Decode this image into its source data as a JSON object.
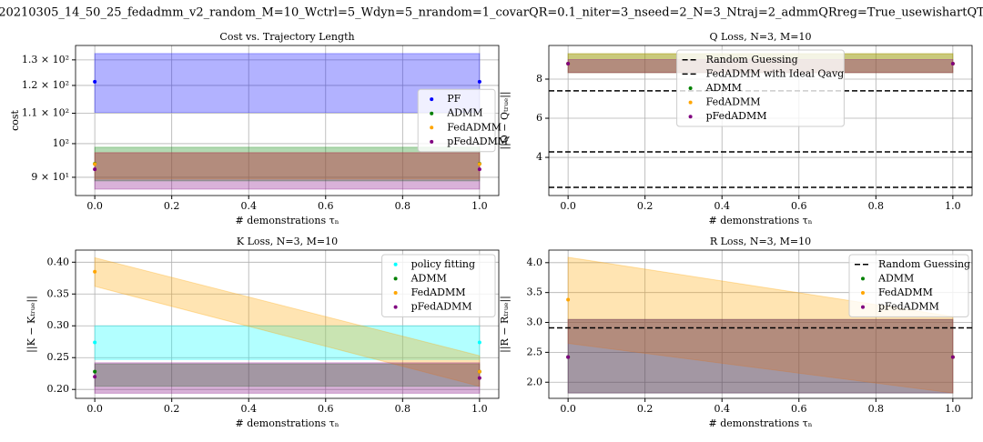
{
  "suptitle": "20210305_14_50_25_fedadmm_v2_random_M=10_Wctrl=5_Wdyn=5_nrandom=1_covarQR=0.1_niter=3_nseed=2_N=3_Ntraj=2_admmQRreg=True_usewishartQT",
  "chart_data": [
    {
      "type": "scatter",
      "title": "Cost vs. Trajectory Length",
      "x_label": "# demonstrations τₙ",
      "y_label": "cost",
      "x": [
        0,
        1
      ],
      "xlim": [
        -0.05,
        1.05
      ],
      "xticks": [
        {
          "value": 0,
          "label": "0.0"
        },
        {
          "value": 0.2,
          "label": "0.2"
        },
        {
          "value": 0.4,
          "label": "0.4"
        },
        {
          "value": 0.6,
          "label": "0.6"
        },
        {
          "value": 0.8,
          "label": "0.8"
        },
        {
          "value": 1,
          "label": "1.0"
        }
      ],
      "ylim": [
        85,
        136
      ],
      "log_y": true,
      "yticks": [
        {
          "value": 90,
          "label": "9 × 10¹"
        },
        {
          "value": 100,
          "label": "10²"
        },
        {
          "value": 110,
          "label": "1.1 × 10²"
        },
        {
          "value": 120,
          "label": "1.2 × 10²"
        },
        {
          "value": 130,
          "label": "1.3 × 10²"
        }
      ],
      "grid": true,
      "legend": "center right",
      "series": [
        {
          "name": "PF",
          "color": "#0000ff",
          "values": [
            121.4,
            121.4
          ],
          "band_low": [
            110.3,
            110.3
          ],
          "band_high": [
            132.6,
            132.6
          ]
        },
        {
          "name": "ADMM",
          "color": "#008000",
          "values": [
            93.9,
            93.9
          ],
          "band_low": [
            89,
            89
          ],
          "band_high": [
            98.9,
            98.9
          ]
        },
        {
          "name": "FedADMM",
          "color": "#ffa500",
          "values": [
            93.8,
            93.8
          ],
          "band_low": [
            89.5,
            89.5
          ],
          "band_high": [
            97.2,
            97.2
          ]
        },
        {
          "name": "pFedADMM",
          "color": "#800080",
          "values": [
            92.3,
            92.3
          ],
          "band_low": [
            86.7,
            86.7
          ],
          "band_high": [
            97.2,
            97.2
          ]
        }
      ]
    },
    {
      "type": "scatter",
      "title": "Q Loss, N=3, M=10",
      "x_label": "# demonstrations τₙ",
      "y_label": "||Q − Qₜᵣᵤₑ||",
      "x": [
        0,
        1
      ],
      "xlim": [
        -0.05,
        1.05
      ],
      "xticks": [
        {
          "value": 0,
          "label": "0.0"
        },
        {
          "value": 0.2,
          "label": "0.2"
        },
        {
          "value": 0.4,
          "label": "0.4"
        },
        {
          "value": 0.6,
          "label": "0.6"
        },
        {
          "value": 0.8,
          "label": "0.8"
        },
        {
          "value": 1,
          "label": "1.0"
        }
      ],
      "ylim": [
        2.05,
        9.72
      ],
      "yticks": [
        4,
        6,
        8
      ],
      "grid": true,
      "legend": "upper center",
      "hlines": [
        {
          "name": "Random Guessing",
          "color": "#000000",
          "values": [
            7.4
          ]
        },
        {
          "name": "FedADMM with Ideal Qavg",
          "color": "#000000",
          "values": [
            4.28,
            2.47
          ]
        }
      ],
      "series": [
        {
          "name": "ADMM",
          "color": "#008000",
          "values": [
            8.79,
            8.79
          ],
          "band_low": [
            8.33,
            8.33
          ],
          "band_high": [
            9.3,
            9.3
          ]
        },
        {
          "name": "FedADMM",
          "color": "#ffa500",
          "values": [
            8.79,
            8.79
          ],
          "band_low": [
            8.33,
            8.33
          ],
          "band_high": [
            9.3,
            9.3
          ]
        },
        {
          "name": "pFedADMM",
          "color": "#800080",
          "values": [
            8.79,
            8.79
          ],
          "band_low": [
            8.33,
            8.33
          ],
          "band_high": [
            9.0,
            9.0
          ]
        }
      ]
    },
    {
      "type": "scatter",
      "title": "K Loss, N=3, M=10",
      "x_label": "# demonstrations τₙ",
      "y_label": "||K − Kₜᵣᵤₑ||",
      "x": [
        0,
        1
      ],
      "xlim": [
        -0.05,
        1.05
      ],
      "xticks": [
        {
          "value": 0,
          "label": "0.0"
        },
        {
          "value": 0.2,
          "label": "0.2"
        },
        {
          "value": 0.4,
          "label": "0.4"
        },
        {
          "value": 0.6,
          "label": "0.6"
        },
        {
          "value": 0.8,
          "label": "0.8"
        },
        {
          "value": 1,
          "label": "1.0"
        }
      ],
      "ylim": [
        0.186,
        0.419
      ],
      "yticks": [
        {
          "value": 0.2,
          "label": "0.20"
        },
        {
          "value": 0.25,
          "label": "0.25"
        },
        {
          "value": 0.3,
          "label": "0.30"
        },
        {
          "value": 0.35,
          "label": "0.35"
        },
        {
          "value": 0.4,
          "label": "0.40"
        }
      ],
      "grid": true,
      "legend": "upper right",
      "series": [
        {
          "name": "policy fitting",
          "color": "#00ffff",
          "values": [
            0.274,
            0.274
          ],
          "band_low": [
            0.247,
            0.247
          ],
          "band_high": [
            0.3,
            0.3
          ]
        },
        {
          "name": "ADMM",
          "color": "#008000",
          "values": [
            0.228,
            0.228
          ],
          "band_low": [
            0.205,
            0.205
          ],
          "band_high": [
            0.24,
            0.24
          ]
        },
        {
          "name": "FedADMM",
          "color": "#ffa500",
          "values": [
            0.385,
            0.228
          ],
          "band_low": [
            0.362,
            0.205
          ],
          "band_high": [
            0.407,
            0.253
          ]
        },
        {
          "name": "pFedADMM",
          "color": "#800080",
          "values": [
            0.22,
            0.218
          ],
          "band_low": [
            0.194,
            0.194
          ],
          "band_high": [
            0.242,
            0.242
          ]
        }
      ]
    },
    {
      "type": "scatter",
      "title": "R Loss, N=3, M=10",
      "x_label": "# demonstrations τₙ",
      "y_label": "||R − Rₜᵣᵤₑ||",
      "x": [
        0,
        1
      ],
      "xlim": [
        -0.05,
        1.05
      ],
      "xticks": [
        {
          "value": 0,
          "label": "0.0"
        },
        {
          "value": 0.2,
          "label": "0.2"
        },
        {
          "value": 0.4,
          "label": "0.4"
        },
        {
          "value": 0.6,
          "label": "0.6"
        },
        {
          "value": 0.8,
          "label": "0.8"
        },
        {
          "value": 1,
          "label": "1.0"
        }
      ],
      "ylim": [
        1.73,
        4.21
      ],
      "yticks": [
        {
          "value": 2,
          "label": "2.0"
        },
        {
          "value": 2.5,
          "label": "2.5"
        },
        {
          "value": 3,
          "label": "3.0"
        },
        {
          "value": 3.5,
          "label": "3.5"
        },
        {
          "value": 4,
          "label": "4.0"
        }
      ],
      "grid": true,
      "legend": "upper right",
      "hlines": [
        {
          "name": "Random Guessing",
          "color": "#000000",
          "values": [
            2.91
          ]
        }
      ],
      "series": [
        {
          "name": "ADMM",
          "color": "#008000",
          "values": [
            2.42,
            2.42
          ],
          "band_low": [
            1.82,
            1.82
          ],
          "band_high": [
            3.05,
            3.05
          ]
        },
        {
          "name": "FedADMM",
          "color": "#ffa500",
          "values": [
            3.38,
            2.42
          ],
          "band_low": [
            2.65,
            1.82
          ],
          "band_high": [
            4.09,
            3.1
          ]
        },
        {
          "name": "pFedADMM",
          "color": "#800080",
          "values": [
            2.42,
            2.42
          ],
          "band_low": [
            1.82,
            1.82
          ],
          "band_high": [
            3.05,
            3.05
          ]
        }
      ]
    }
  ]
}
